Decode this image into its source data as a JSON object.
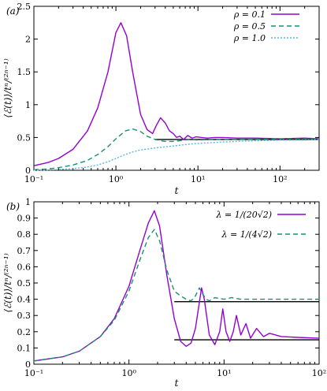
{
  "chart_data": [
    {
      "type": "line",
      "panel_label": "(a)",
      "xlabel": "t",
      "ylabel": "⟨ℰ(t)⟩/tⁿ/⁽²ⁿ⁻¹⁾",
      "xscale": "log",
      "xlim": [
        0.1,
        300
      ],
      "ylim": [
        0,
        2.5
      ],
      "xticks": [
        {
          "v": 0.1,
          "t": "10⁻¹"
        },
        {
          "v": 1,
          "t": "10⁰"
        },
        {
          "v": 10,
          "t": "10¹"
        },
        {
          "v": 100,
          "t": "10²"
        }
      ],
      "yticks": [
        {
          "v": 0,
          "t": "0"
        },
        {
          "v": 0.5,
          "t": "0.5"
        },
        {
          "v": 1,
          "t": "1"
        },
        {
          "v": 1.5,
          "t": "1.5"
        },
        {
          "v": 2,
          "t": "2"
        },
        {
          "v": 2.5,
          "t": "2.5"
        }
      ],
      "legend_position": "top-right",
      "grid": false,
      "series": [
        {
          "name": "ρ = 0.1",
          "color": "#9400d3",
          "dash": "solid",
          "x": [
            0.1,
            0.15,
            0.2,
            0.3,
            0.45,
            0.6,
            0.8,
            1.0,
            1.15,
            1.35,
            1.6,
            2.0,
            2.4,
            2.8,
            3.1,
            3.5,
            4.0,
            4.5,
            5.0,
            5.5,
            6.0,
            6.7,
            7.5,
            8.5,
            9.5,
            11,
            13,
            16,
            20,
            30,
            50,
            100,
            200,
            300
          ],
          "y": [
            0.07,
            0.12,
            0.18,
            0.32,
            0.6,
            0.95,
            1.5,
            2.1,
            2.25,
            2.05,
            1.5,
            0.85,
            0.62,
            0.56,
            0.68,
            0.8,
            0.72,
            0.6,
            0.56,
            0.5,
            0.52,
            0.47,
            0.53,
            0.49,
            0.51,
            0.5,
            0.49,
            0.5,
            0.5,
            0.49,
            0.49,
            0.48,
            0.49,
            0.48
          ]
        },
        {
          "name": "ρ = 0.5",
          "color": "#1a9070",
          "dash": "6,4",
          "x": [
            0.1,
            0.15,
            0.2,
            0.3,
            0.45,
            0.6,
            0.8,
            1.0,
            1.3,
            1.6,
            2.0,
            2.4,
            3.0,
            3.5,
            4.0,
            5.0,
            6.0,
            8.0,
            10,
            15,
            20,
            30,
            50,
            100,
            200,
            300
          ],
          "y": [
            0.01,
            0.02,
            0.04,
            0.08,
            0.15,
            0.24,
            0.36,
            0.48,
            0.6,
            0.63,
            0.59,
            0.52,
            0.47,
            0.45,
            0.44,
            0.44,
            0.45,
            0.47,
            0.46,
            0.47,
            0.47,
            0.47,
            0.47,
            0.48,
            0.48,
            0.48
          ]
        },
        {
          "name": "ρ = 1.0",
          "color": "#56b4e9",
          "dash": "2,2",
          "x": [
            0.1,
            0.15,
            0.2,
            0.3,
            0.45,
            0.6,
            0.8,
            1.0,
            1.3,
            1.6,
            2.0,
            3.0,
            5.0,
            8.0,
            10,
            20,
            30,
            50,
            100,
            200,
            300
          ],
          "y": [
            0.002,
            0.005,
            0.01,
            0.025,
            0.05,
            0.08,
            0.13,
            0.18,
            0.24,
            0.28,
            0.31,
            0.34,
            0.37,
            0.4,
            0.41,
            0.43,
            0.44,
            0.45,
            0.46,
            0.46,
            0.47
          ]
        }
      ],
      "reference_lines": [
        {
          "x0": 3,
          "x1": 300,
          "y": 0.47,
          "color": "#000000"
        }
      ]
    },
    {
      "type": "line",
      "panel_label": "(b)",
      "xlabel": "t",
      "ylabel": "⟨ℰ(t)⟩/tⁿ/⁽²ⁿ⁻¹⁾",
      "xscale": "log",
      "xlim": [
        0.1,
        100
      ],
      "ylim": [
        0,
        1
      ],
      "xticks": [
        {
          "v": 0.1,
          "t": "10⁻¹"
        },
        {
          "v": 1,
          "t": "10⁰"
        },
        {
          "v": 10,
          "t": "10¹"
        },
        {
          "v": 100,
          "t": "10²"
        }
      ],
      "yticks": [
        {
          "v": 0,
          "t": "0"
        },
        {
          "v": 0.1,
          "t": "0.1"
        },
        {
          "v": 0.2,
          "t": "0.2"
        },
        {
          "v": 0.3,
          "t": "0.3"
        },
        {
          "v": 0.4,
          "t": "0.4"
        },
        {
          "v": 0.5,
          "t": "0.5"
        },
        {
          "v": 0.6,
          "t": "0.6"
        },
        {
          "v": 0.7,
          "t": "0.7"
        },
        {
          "v": 0.8,
          "t": "0.8"
        },
        {
          "v": 0.9,
          "t": "0.9"
        },
        {
          "v": 1,
          "t": "1"
        }
      ],
      "legend_position": "top-right",
      "grid": false,
      "series": [
        {
          "name": "λ = 1/(20√2)",
          "color": "#9400d3",
          "dash": "solid",
          "x": [
            0.1,
            0.2,
            0.3,
            0.5,
            0.7,
            1.0,
            1.3,
            1.6,
            1.85,
            2.1,
            2.5,
            3.0,
            3.5,
            4.0,
            4.5,
            5.0,
            5.5,
            5.8,
            6.2,
            7.0,
            8.0,
            9.0,
            9.7,
            10.5,
            11.5,
            12.5,
            13.5,
            15,
            17,
            19,
            22,
            26,
            30,
            40,
            60,
            100
          ],
          "y": [
            0.02,
            0.045,
            0.08,
            0.17,
            0.28,
            0.48,
            0.7,
            0.87,
            0.945,
            0.85,
            0.55,
            0.28,
            0.14,
            0.11,
            0.13,
            0.22,
            0.38,
            0.47,
            0.4,
            0.18,
            0.12,
            0.2,
            0.34,
            0.2,
            0.14,
            0.2,
            0.3,
            0.18,
            0.25,
            0.16,
            0.22,
            0.17,
            0.19,
            0.17,
            0.165,
            0.16
          ]
        },
        {
          "name": "λ = 1/(4√2)",
          "color": "#1a9070",
          "dash": "6,4",
          "x": [
            0.1,
            0.2,
            0.3,
            0.5,
            0.7,
            1.0,
            1.3,
            1.6,
            1.85,
            2.1,
            2.5,
            3.0,
            3.5,
            4.0,
            4.5,
            5.0,
            5.5,
            6.0,
            6.5,
            7.0,
            8.0,
            10,
            12,
            15,
            20,
            30,
            50,
            100
          ],
          "y": [
            0.02,
            0.045,
            0.08,
            0.17,
            0.27,
            0.45,
            0.64,
            0.78,
            0.83,
            0.76,
            0.58,
            0.45,
            0.42,
            0.4,
            0.39,
            0.42,
            0.47,
            0.43,
            0.4,
            0.39,
            0.41,
            0.4,
            0.41,
            0.4,
            0.4,
            0.4,
            0.4,
            0.4
          ]
        }
      ],
      "reference_lines": [
        {
          "x0": 3,
          "x1": 100,
          "y": 0.385,
          "color": "#000000"
        },
        {
          "x0": 3,
          "x1": 100,
          "y": 0.15,
          "color": "#000000"
        }
      ]
    }
  ]
}
